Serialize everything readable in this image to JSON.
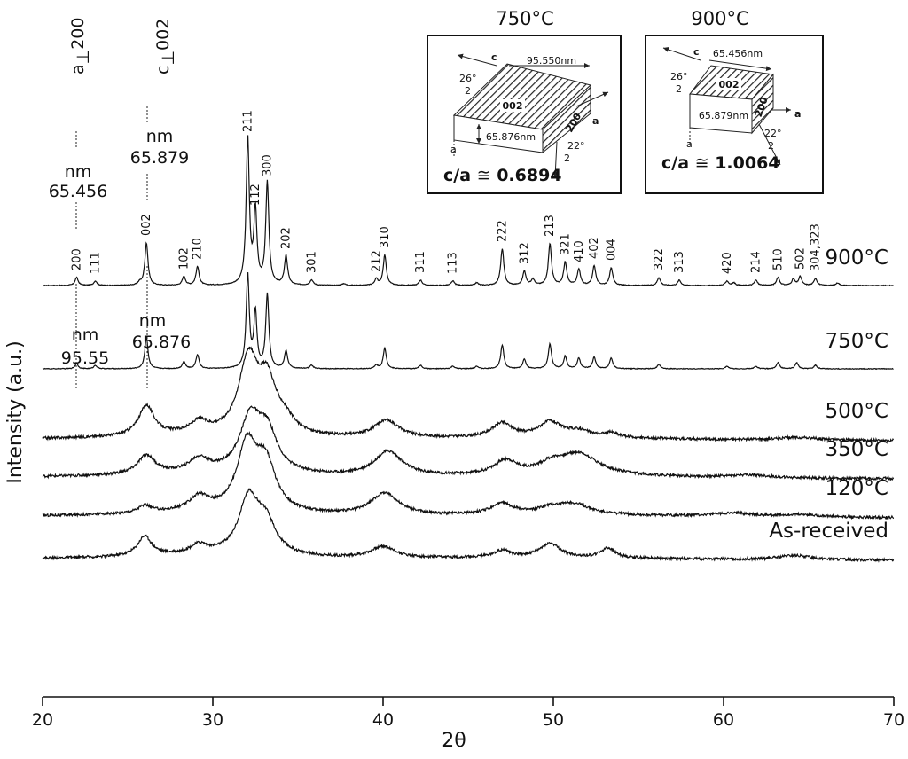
{
  "chart_data": {
    "type": "line",
    "title": "",
    "xlabel": "2θ",
    "ylabel": "Intensity (a.u.)",
    "xlim": [
      20,
      70
    ],
    "xticks": [
      20,
      30,
      40,
      50,
      60,
      70
    ],
    "grid": false,
    "series": [
      {
        "name": "900°C",
        "baseline": 0.62,
        "background": "sharp",
        "peaks": [
          {
            "x": 22.0,
            "h": 0.09
          },
          {
            "x": 23.1,
            "h": 0.05
          },
          {
            "x": 25.7,
            "h": 0.03
          },
          {
            "x": 26.1,
            "h": 0.48
          },
          {
            "x": 28.3,
            "h": 0.1
          },
          {
            "x": 29.1,
            "h": 0.21
          },
          {
            "x": 32.05,
            "h": 1.65
          },
          {
            "x": 32.5,
            "h": 0.82
          },
          {
            "x": 33.2,
            "h": 1.15
          },
          {
            "x": 34.3,
            "h": 0.33
          },
          {
            "x": 35.8,
            "h": 0.06
          },
          {
            "x": 37.7,
            "h": 0.02
          },
          {
            "x": 39.6,
            "h": 0.07
          },
          {
            "x": 40.1,
            "h": 0.34
          },
          {
            "x": 42.2,
            "h": 0.06
          },
          {
            "x": 44.1,
            "h": 0.05
          },
          {
            "x": 45.5,
            "h": 0.03
          },
          {
            "x": 47.0,
            "h": 0.41
          },
          {
            "x": 48.3,
            "h": 0.16
          },
          {
            "x": 48.8,
            "h": 0.07
          },
          {
            "x": 49.8,
            "h": 0.47
          },
          {
            "x": 50.7,
            "h": 0.26
          },
          {
            "x": 51.5,
            "h": 0.18
          },
          {
            "x": 52.4,
            "h": 0.22
          },
          {
            "x": 53.4,
            "h": 0.2
          },
          {
            "x": 56.2,
            "h": 0.09
          },
          {
            "x": 57.4,
            "h": 0.06
          },
          {
            "x": 60.2,
            "h": 0.05
          },
          {
            "x": 60.6,
            "h": 0.03
          },
          {
            "x": 61.9,
            "h": 0.06
          },
          {
            "x": 63.2,
            "h": 0.09
          },
          {
            "x": 64.1,
            "h": 0.07
          },
          {
            "x": 64.5,
            "h": 0.1
          },
          {
            "x": 65.4,
            "h": 0.08
          },
          {
            "x": 66.7,
            "h": 0.03
          }
        ]
      },
      {
        "name": "750°C",
        "baseline": 1.56,
        "background": "sharp",
        "peaks": [
          {
            "x": 22.0,
            "h": 0.06
          },
          {
            "x": 23.1,
            "h": 0.04
          },
          {
            "x": 26.1,
            "h": 0.36
          },
          {
            "x": 28.3,
            "h": 0.08
          },
          {
            "x": 29.1,
            "h": 0.16
          },
          {
            "x": 32.05,
            "h": 1.05
          },
          {
            "x": 32.5,
            "h": 0.62
          },
          {
            "x": 33.2,
            "h": 0.83
          },
          {
            "x": 34.3,
            "h": 0.2
          },
          {
            "x": 35.8,
            "h": 0.04
          },
          {
            "x": 39.6,
            "h": 0.04
          },
          {
            "x": 40.1,
            "h": 0.23
          },
          {
            "x": 42.2,
            "h": 0.04
          },
          {
            "x": 44.1,
            "h": 0.03
          },
          {
            "x": 45.5,
            "h": 0.03
          },
          {
            "x": 47.0,
            "h": 0.27
          },
          {
            "x": 48.3,
            "h": 0.11
          },
          {
            "x": 49.8,
            "h": 0.28
          },
          {
            "x": 50.7,
            "h": 0.14
          },
          {
            "x": 51.5,
            "h": 0.12
          },
          {
            "x": 52.4,
            "h": 0.13
          },
          {
            "x": 53.4,
            "h": 0.12
          },
          {
            "x": 56.2,
            "h": 0.05
          },
          {
            "x": 60.2,
            "h": 0.03
          },
          {
            "x": 61.9,
            "h": 0.03
          },
          {
            "x": 63.2,
            "h": 0.07
          },
          {
            "x": 64.3,
            "h": 0.07
          },
          {
            "x": 65.4,
            "h": 0.04
          }
        ]
      },
      {
        "name": "500°C",
        "baseline": 2.35,
        "background": "broad",
        "peaks": [
          {
            "x": 26.1,
            "h": 0.34,
            "w": 0.55
          },
          {
            "x": 29.2,
            "h": 0.13,
            "w": 0.6
          },
          {
            "x": 32.1,
            "h": 0.85,
            "w": 0.7
          },
          {
            "x": 33.2,
            "h": 0.52,
            "w": 0.6
          },
          {
            "x": 34.2,
            "h": 0.15,
            "w": 0.7
          },
          {
            "x": 40.2,
            "h": 0.2,
            "w": 0.9
          },
          {
            "x": 47.0,
            "h": 0.16,
            "w": 0.7
          },
          {
            "x": 49.8,
            "h": 0.17,
            "w": 0.8
          },
          {
            "x": 51.5,
            "h": 0.07,
            "w": 0.9
          },
          {
            "x": 53.4,
            "h": 0.05,
            "w": 0.5
          },
          {
            "x": 64.4,
            "h": 0.03,
            "w": 1.5
          }
        ]
      },
      {
        "name": "350°C",
        "baseline": 2.78,
        "background": "broad",
        "peaks": [
          {
            "x": 26.1,
            "h": 0.21,
            "w": 0.6
          },
          {
            "x": 29.2,
            "h": 0.15,
            "w": 0.7
          },
          {
            "x": 32.2,
            "h": 0.6,
            "w": 0.75
          },
          {
            "x": 33.2,
            "h": 0.42,
            "w": 0.7
          },
          {
            "x": 40.3,
            "h": 0.28,
            "w": 1.0
          },
          {
            "x": 47.2,
            "h": 0.16,
            "w": 0.8
          },
          {
            "x": 49.9,
            "h": 0.1,
            "w": 0.9
          },
          {
            "x": 51.5,
            "h": 0.24,
            "w": 1.4
          },
          {
            "x": 61.5,
            "h": 0.03,
            "w": 1.5
          }
        ]
      },
      {
        "name": "120°C",
        "baseline": 3.22,
        "background": "broad",
        "peaks": [
          {
            "x": 26.0,
            "h": 0.08,
            "w": 0.5
          },
          {
            "x": 29.2,
            "h": 0.16,
            "w": 0.7
          },
          {
            "x": 32.0,
            "h": 0.73,
            "w": 0.7
          },
          {
            "x": 33.1,
            "h": 0.52,
            "w": 0.7
          },
          {
            "x": 40.1,
            "h": 0.25,
            "w": 1.0
          },
          {
            "x": 47.0,
            "h": 0.12,
            "w": 0.8
          },
          {
            "x": 49.8,
            "h": 0.06,
            "w": 0.8
          },
          {
            "x": 51.2,
            "h": 0.12,
            "w": 1.2
          },
          {
            "x": 60.5,
            "h": 0.04,
            "w": 1.5
          },
          {
            "x": 64.5,
            "h": 0.03,
            "w": 1.5
          }
        ]
      },
      {
        "name": "As-received",
        "baseline": 3.7,
        "background": "broad",
        "peaks": [
          {
            "x": 26.0,
            "h": 0.22,
            "w": 0.5
          },
          {
            "x": 29.2,
            "h": 0.1,
            "w": 0.6
          },
          {
            "x": 32.1,
            "h": 0.62,
            "w": 0.7
          },
          {
            "x": 33.1,
            "h": 0.34,
            "w": 0.7
          },
          {
            "x": 40.0,
            "h": 0.13,
            "w": 0.9
          },
          {
            "x": 47.0,
            "h": 0.08,
            "w": 0.6
          },
          {
            "x": 49.8,
            "h": 0.16,
            "w": 0.7
          },
          {
            "x": 53.2,
            "h": 0.11,
            "w": 0.5
          },
          {
            "x": 64.2,
            "h": 0.05,
            "w": 1.2
          }
        ]
      }
    ],
    "hkl_labels": [
      {
        "label": "200",
        "x": 22.0
      },
      {
        "label": "111",
        "x": 23.1
      },
      {
        "label": "002",
        "x": 26.1
      },
      {
        "label": "102",
        "x": 28.3
      },
      {
        "label": "210",
        "x": 29.1
      },
      {
        "label": "211",
        "x": 32.05
      },
      {
        "label": "112",
        "x": 32.5
      },
      {
        "label": "300",
        "x": 33.2
      },
      {
        "label": "202",
        "x": 34.3
      },
      {
        "label": "301",
        "x": 35.8
      },
      {
        "label": "212",
        "x": 39.6
      },
      {
        "label": "310",
        "x": 40.1
      },
      {
        "label": "311",
        "x": 42.2
      },
      {
        "label": "113",
        "x": 44.1
      },
      {
        "label": "222",
        "x": 47.0
      },
      {
        "label": "312",
        "x": 48.3
      },
      {
        "label": "213",
        "x": 49.8
      },
      {
        "label": "321",
        "x": 50.7
      },
      {
        "label": "410",
        "x": 51.5
      },
      {
        "label": "402",
        "x": 52.4
      },
      {
        "label": "004",
        "x": 53.4
      },
      {
        "label": "322",
        "x": 56.2
      },
      {
        "label": "313",
        "x": 57.4
      },
      {
        "label": "420",
        "x": 60.2
      },
      {
        "label": "214",
        "x": 61.9
      },
      {
        "label": "510",
        "x": 63.2
      },
      {
        "label": "502",
        "x": 64.5
      },
      {
        "label": "304,323",
        "x": 65.4
      }
    ],
    "annotations": {
      "a_perp": "a",
      "a_perp_hkl": "200",
      "c_perp": "c",
      "c_perp_hkl": "002",
      "nm_900_a_unit": "nm",
      "nm_900_a_value": "65.456",
      "nm_900_c_unit": "nm",
      "nm_900_c_value": "65.879",
      "nm_750_a_unit": "nm",
      "nm_750_a_value": "95.55",
      "nm_750_c_unit": "nm",
      "nm_750_c_value": "65.876"
    },
    "insets": [
      {
        "title": "750°C",
        "top_edge": "95.550nm",
        "side_edge": "65.876nm",
        "top_face": "002",
        "side_face": "200",
        "angle_top": "26°",
        "angle_top_div": "2",
        "angle_bottom": "22°",
        "angle_bottom_div": "2",
        "axis_c": "c",
        "axis_a": "a",
        "ratio_label": "c/a",
        "ratio_symbol": "≅",
        "ratio_value": "0.6894"
      },
      {
        "title": "900°C",
        "top_edge": "65.456nm",
        "side_edge": "65.879nm",
        "top_face": "002",
        "side_face": "200",
        "angle_top": "26°",
        "angle_top_div": "2",
        "angle_bottom": "22°",
        "angle_bottom_div": "2",
        "axis_c": "c",
        "axis_a": "a",
        "ratio_label": "c/a",
        "ratio_symbol": "≅",
        "ratio_value": "1.0064"
      }
    ]
  }
}
